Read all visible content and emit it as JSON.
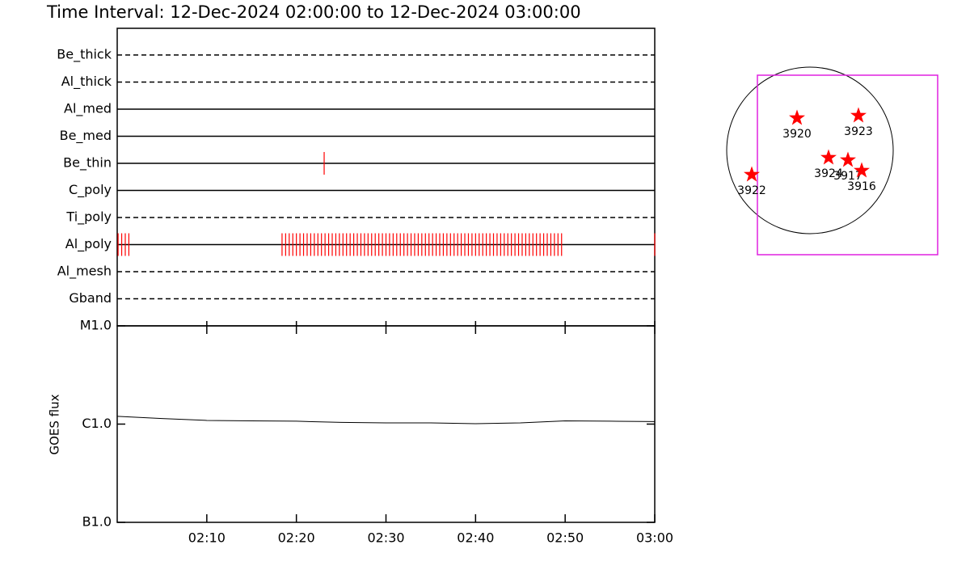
{
  "chart_data": {
    "type": "timeline",
    "title": "Time Interval: 12-Dec-2024 02:00:00 to 12-Dec-2024 03:00:00",
    "xlim": [
      0,
      60
    ],
    "xticks": [
      {
        "value": 10,
        "label": "02:10"
      },
      {
        "value": 20,
        "label": "02:20"
      },
      {
        "value": 30,
        "label": "02:30"
      },
      {
        "value": 40,
        "label": "02:40"
      },
      {
        "value": 50,
        "label": "02:50"
      },
      {
        "value": 60,
        "label": "03:00"
      }
    ],
    "event_color": "#ff0000",
    "filters": [
      {
        "name": "Be_thick",
        "line": "dashed",
        "times": []
      },
      {
        "name": "Al_thick",
        "line": "dashed",
        "times": []
      },
      {
        "name": "Al_med",
        "line": "solid",
        "times": []
      },
      {
        "name": "Be_med",
        "line": "solid",
        "times": []
      },
      {
        "name": "Be_thin",
        "line": "solid",
        "times": [
          23.1
        ]
      },
      {
        "name": "C_poly",
        "line": "solid",
        "times": []
      },
      {
        "name": "Ti_poly",
        "line": "dashed",
        "times": []
      },
      {
        "name": "Al_poly",
        "line": "solid",
        "times": [
          0.1,
          0.5,
          0.9,
          1.3,
          18.4,
          18.8,
          19.2,
          19.6,
          20.0,
          20.4,
          20.8,
          21.2,
          21.6,
          22.0,
          22.4,
          22.8,
          23.2,
          23.6,
          24.0,
          24.4,
          24.8,
          25.2,
          25.6,
          26.0,
          26.4,
          26.8,
          27.2,
          27.6,
          28.0,
          28.4,
          28.8,
          29.2,
          29.6,
          30.0,
          30.4,
          30.8,
          31.2,
          31.6,
          32.0,
          32.4,
          32.8,
          33.2,
          33.6,
          34.0,
          34.4,
          34.8,
          35.2,
          35.6,
          36.0,
          36.4,
          36.8,
          37.2,
          37.6,
          38.0,
          38.4,
          38.8,
          39.2,
          39.6,
          40.0,
          40.4,
          40.8,
          41.2,
          41.6,
          42.0,
          42.4,
          42.8,
          43.2,
          43.6,
          44.0,
          44.4,
          44.8,
          45.2,
          45.6,
          46.0,
          46.4,
          46.8,
          47.2,
          47.6,
          48.0,
          48.4,
          48.8,
          49.2,
          49.6,
          60.0
        ]
      },
      {
        "name": "Al_mesh",
        "line": "dashed",
        "times": []
      },
      {
        "name": "Gband",
        "line": "dashed",
        "times": []
      }
    ],
    "goes": {
      "ylabel": "GOES flux",
      "log_scale": true,
      "ylim": [
        1e-07,
        1e-05
      ],
      "yticks": [
        {
          "value": 1e-07,
          "label": "B1.0"
        },
        {
          "value": 1e-06,
          "label": "C1.0"
        },
        {
          "value": 1e-05,
          "label": "M1.0"
        }
      ],
      "x": [
        0,
        5,
        10,
        15,
        20,
        25,
        30,
        35,
        40,
        45,
        50,
        55,
        60
      ],
      "values": [
        1.2e-06,
        1.14e-06,
        1.09e-06,
        1.08e-06,
        1.07e-06,
        1.04e-06,
        1.03e-06,
        1.03e-06,
        1.01e-06,
        1.03e-06,
        1.08e-06,
        1.07e-06,
        1.06e-06
      ]
    },
    "regions": [
      "3920",
      "3923",
      "3924",
      "3917",
      "3916",
      "3922"
    ]
  }
}
